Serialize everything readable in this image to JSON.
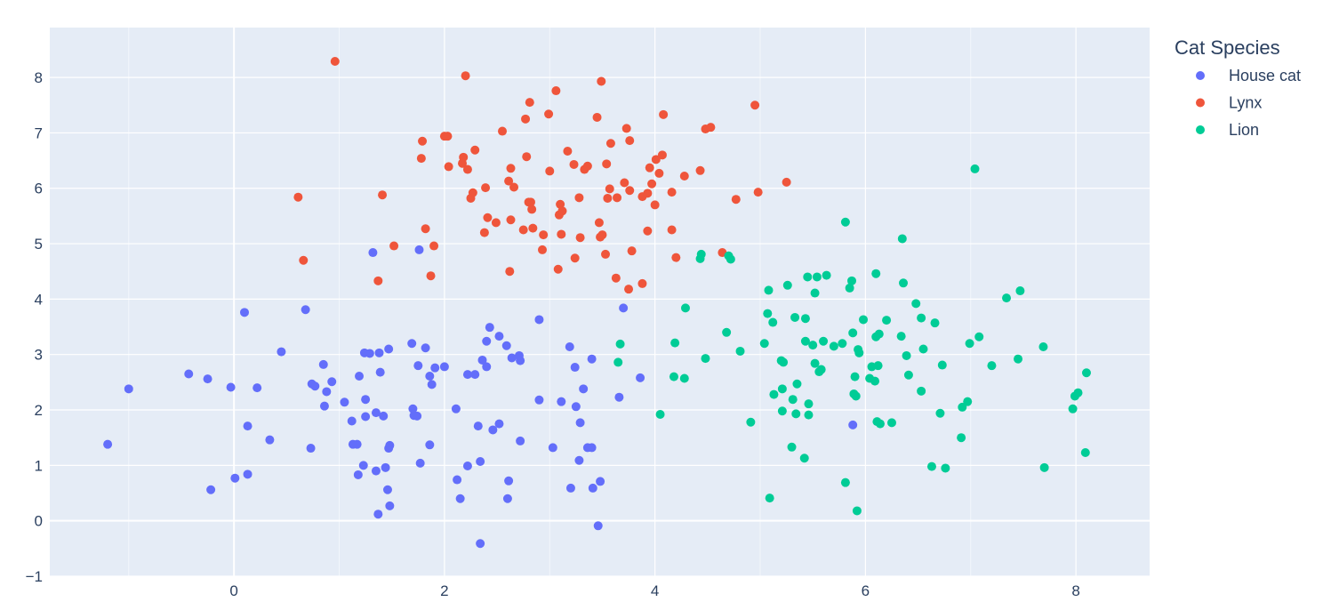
{
  "chart_data": {
    "type": "scatter",
    "title": "",
    "xlabel": "",
    "ylabel": "",
    "xlim": [
      -1.75,
      8.7
    ],
    "ylim": [
      -1,
      8.9
    ],
    "x_ticks": [
      0,
      2,
      4,
      6,
      8
    ],
    "y_ticks": [
      -1,
      0,
      1,
      2,
      3,
      4,
      5,
      6,
      7,
      8
    ],
    "x_tick_labels": [
      "0",
      "2",
      "4",
      "6",
      "8"
    ],
    "y_tick_labels": [
      "−1",
      "0",
      "1",
      "2",
      "3",
      "4",
      "5",
      "6",
      "7",
      "8"
    ],
    "grid": true,
    "plot_background": "#e5ecf6",
    "grid_color": "#ffffff",
    "legend": {
      "title": "Cat Species",
      "placement": "top-right-outside"
    },
    "series": [
      {
        "name": "House cat",
        "color": "#636efa",
        "points": [
          [
            -1.2,
            1.38
          ],
          [
            -1.0,
            2.38
          ],
          [
            -0.43,
            2.65
          ],
          [
            -0.25,
            2.56
          ],
          [
            -0.22,
            0.56
          ],
          [
            -0.03,
            2.41
          ],
          [
            0.01,
            0.77
          ],
          [
            0.1,
            3.76
          ],
          [
            0.13,
            1.71
          ],
          [
            0.13,
            0.84
          ],
          [
            0.22,
            2.4
          ],
          [
            0.34,
            1.46
          ],
          [
            0.45,
            3.05
          ],
          [
            0.68,
            3.81
          ],
          [
            0.73,
            1.31
          ],
          [
            0.74,
            2.47
          ],
          [
            0.77,
            2.43
          ],
          [
            0.85,
            2.82
          ],
          [
            0.86,
            2.07
          ],
          [
            0.88,
            2.33
          ],
          [
            0.93,
            2.51
          ],
          [
            1.05,
            2.14
          ],
          [
            1.12,
            1.8
          ],
          [
            1.13,
            1.38
          ],
          [
            1.17,
            1.38
          ],
          [
            1.18,
            0.83
          ],
          [
            1.19,
            2.61
          ],
          [
            1.23,
            1.0
          ],
          [
            1.24,
            3.03
          ],
          [
            1.25,
            2.19
          ],
          [
            1.25,
            1.88
          ],
          [
            1.29,
            3.02
          ],
          [
            1.32,
            4.84
          ],
          [
            1.35,
            1.95
          ],
          [
            1.35,
            0.9
          ],
          [
            1.37,
            0.12
          ],
          [
            1.38,
            3.03
          ],
          [
            1.39,
            2.68
          ],
          [
            1.42,
            1.89
          ],
          [
            1.44,
            0.96
          ],
          [
            1.46,
            0.56
          ],
          [
            1.47,
            1.31
          ],
          [
            1.48,
            1.36
          ],
          [
            1.48,
            0.27
          ],
          [
            1.47,
            3.1
          ],
          [
            1.69,
            3.2
          ],
          [
            1.7,
            2.02
          ],
          [
            1.71,
            1.9
          ],
          [
            1.74,
            1.89
          ],
          [
            1.75,
            2.8
          ],
          [
            1.76,
            4.89
          ],
          [
            1.77,
            1.04
          ],
          [
            1.82,
            3.12
          ],
          [
            1.86,
            1.37
          ],
          [
            1.86,
            2.61
          ],
          [
            1.88,
            2.46
          ],
          [
            1.91,
            2.76
          ],
          [
            2.0,
            2.78
          ],
          [
            2.11,
            2.02
          ],
          [
            2.12,
            0.74
          ],
          [
            2.15,
            0.4
          ],
          [
            2.22,
            0.99
          ],
          [
            2.22,
            2.64
          ],
          [
            2.29,
            2.64
          ],
          [
            2.32,
            1.71
          ],
          [
            2.34,
            1.07
          ],
          [
            2.34,
            -0.41
          ],
          [
            2.36,
            2.9
          ],
          [
            2.4,
            3.24
          ],
          [
            2.4,
            2.78
          ],
          [
            2.43,
            3.49
          ],
          [
            2.46,
            1.64
          ],
          [
            2.52,
            3.33
          ],
          [
            2.52,
            1.75
          ],
          [
            2.59,
            3.16
          ],
          [
            2.6,
            0.4
          ],
          [
            2.61,
            0.72
          ],
          [
            2.64,
            2.94
          ],
          [
            2.71,
            2.98
          ],
          [
            2.72,
            2.89
          ],
          [
            2.72,
            1.44
          ],
          [
            2.9,
            2.18
          ],
          [
            2.9,
            3.63
          ],
          [
            3.03,
            1.32
          ],
          [
            3.11,
            2.15
          ],
          [
            3.19,
            3.14
          ],
          [
            3.2,
            0.59
          ],
          [
            3.24,
            2.77
          ],
          [
            3.25,
            2.06
          ],
          [
            3.28,
            1.09
          ],
          [
            3.29,
            1.77
          ],
          [
            3.32,
            2.38
          ],
          [
            3.36,
            1.32
          ],
          [
            3.4,
            1.32
          ],
          [
            3.4,
            2.92
          ],
          [
            3.41,
            0.59
          ],
          [
            3.46,
            -0.09
          ],
          [
            3.48,
            0.71
          ],
          [
            3.66,
            2.23
          ],
          [
            3.7,
            3.84
          ],
          [
            3.86,
            2.58
          ],
          [
            5.88,
            1.73
          ]
        ]
      },
      {
        "name": "Lynx",
        "color": "#ef553b",
        "points": [
          [
            0.61,
            5.84
          ],
          [
            0.66,
            4.7
          ],
          [
            0.96,
            8.29
          ],
          [
            1.37,
            4.33
          ],
          [
            1.41,
            5.88
          ],
          [
            1.52,
            4.96
          ],
          [
            1.78,
            6.54
          ],
          [
            1.79,
            6.85
          ],
          [
            1.82,
            5.27
          ],
          [
            1.87,
            4.42
          ],
          [
            1.9,
            4.96
          ],
          [
            2.0,
            6.94
          ],
          [
            2.03,
            6.94
          ],
          [
            2.04,
            6.39
          ],
          [
            2.17,
            6.45
          ],
          [
            2.18,
            6.56
          ],
          [
            2.2,
            8.03
          ],
          [
            2.22,
            6.34
          ],
          [
            2.25,
            5.82
          ],
          [
            2.27,
            5.92
          ],
          [
            2.29,
            6.69
          ],
          [
            2.38,
            5.2
          ],
          [
            2.39,
            6.01
          ],
          [
            2.41,
            5.47
          ],
          [
            2.49,
            5.38
          ],
          [
            2.55,
            7.03
          ],
          [
            2.61,
            6.13
          ],
          [
            2.62,
            4.5
          ],
          [
            2.63,
            6.36
          ],
          [
            2.63,
            5.43
          ],
          [
            2.66,
            6.02
          ],
          [
            2.75,
            5.25
          ],
          [
            2.77,
            7.25
          ],
          [
            2.78,
            6.57
          ],
          [
            2.8,
            5.75
          ],
          [
            2.81,
            7.55
          ],
          [
            2.82,
            5.75
          ],
          [
            2.83,
            5.62
          ],
          [
            2.84,
            5.28
          ],
          [
            2.93,
            4.89
          ],
          [
            2.94,
            5.16
          ],
          [
            2.99,
            7.34
          ],
          [
            3.0,
            6.31
          ],
          [
            3.06,
            7.76
          ],
          [
            3.08,
            4.54
          ],
          [
            3.09,
            5.52
          ],
          [
            3.1,
            5.71
          ],
          [
            3.11,
            5.17
          ],
          [
            3.12,
            5.59
          ],
          [
            3.17,
            6.67
          ],
          [
            3.23,
            6.43
          ],
          [
            3.24,
            4.74
          ],
          [
            3.28,
            5.83
          ],
          [
            3.29,
            5.11
          ],
          [
            3.33,
            6.34
          ],
          [
            3.36,
            6.4
          ],
          [
            3.45,
            7.28
          ],
          [
            3.47,
            5.38
          ],
          [
            3.48,
            5.12
          ],
          [
            3.49,
            7.93
          ],
          [
            3.5,
            5.16
          ],
          [
            3.53,
            4.81
          ],
          [
            3.54,
            6.44
          ],
          [
            3.55,
            5.82
          ],
          [
            3.57,
            5.99
          ],
          [
            3.58,
            6.81
          ],
          [
            3.63,
            4.38
          ],
          [
            3.64,
            5.83
          ],
          [
            3.71,
            6.1
          ],
          [
            3.73,
            7.08
          ],
          [
            3.75,
            4.18
          ],
          [
            3.76,
            5.96
          ],
          [
            3.76,
            6.86
          ],
          [
            3.78,
            4.87
          ],
          [
            3.88,
            4.28
          ],
          [
            3.88,
            5.85
          ],
          [
            3.93,
            5.23
          ],
          [
            3.93,
            5.91
          ],
          [
            3.95,
            6.37
          ],
          [
            3.97,
            6.08
          ],
          [
            4.0,
            5.7
          ],
          [
            4.01,
            6.52
          ],
          [
            4.04,
            6.27
          ],
          [
            4.07,
            6.6
          ],
          [
            4.08,
            7.33
          ],
          [
            4.16,
            5.25
          ],
          [
            4.16,
            5.93
          ],
          [
            4.2,
            4.75
          ],
          [
            4.28,
            6.22
          ],
          [
            4.43,
            6.32
          ],
          [
            4.48,
            7.07
          ],
          [
            4.53,
            7.1
          ],
          [
            4.64,
            4.84
          ],
          [
            4.77,
            5.8
          ],
          [
            4.95,
            7.5
          ],
          [
            4.98,
            5.93
          ],
          [
            5.25,
            6.11
          ]
        ]
      },
      {
        "name": "Lion",
        "color": "#00cc96",
        "points": [
          [
            3.65,
            2.86
          ],
          [
            3.67,
            3.19
          ],
          [
            4.05,
            1.92
          ],
          [
            4.18,
            2.6
          ],
          [
            4.19,
            3.21
          ],
          [
            4.28,
            2.57
          ],
          [
            4.29,
            3.84
          ],
          [
            4.43,
            4.73
          ],
          [
            4.44,
            4.81
          ],
          [
            4.48,
            2.93
          ],
          [
            4.68,
            3.4
          ],
          [
            4.7,
            4.78
          ],
          [
            4.72,
            4.72
          ],
          [
            4.81,
            3.06
          ],
          [
            4.91,
            1.78
          ],
          [
            5.04,
            3.2
          ],
          [
            5.07,
            3.74
          ],
          [
            5.08,
            4.16
          ],
          [
            5.09,
            0.41
          ],
          [
            5.12,
            3.58
          ],
          [
            5.13,
            2.28
          ],
          [
            5.2,
            2.89
          ],
          [
            5.21,
            1.98
          ],
          [
            5.21,
            2.38
          ],
          [
            5.22,
            2.86
          ],
          [
            5.26,
            4.25
          ],
          [
            5.3,
            1.33
          ],
          [
            5.31,
            2.19
          ],
          [
            5.33,
            3.67
          ],
          [
            5.34,
            1.93
          ],
          [
            5.35,
            2.47
          ],
          [
            5.42,
            1.13
          ],
          [
            5.43,
            3.65
          ],
          [
            5.43,
            3.24
          ],
          [
            5.45,
            4.4
          ],
          [
            5.46,
            1.91
          ],
          [
            5.46,
            2.11
          ],
          [
            5.5,
            3.17
          ],
          [
            5.52,
            2.84
          ],
          [
            5.52,
            4.11
          ],
          [
            5.54,
            4.4
          ],
          [
            5.56,
            2.69
          ],
          [
            5.58,
            2.73
          ],
          [
            5.6,
            3.24
          ],
          [
            5.63,
            4.43
          ],
          [
            5.7,
            3.15
          ],
          [
            5.78,
            3.2
          ],
          [
            5.81,
            0.69
          ],
          [
            5.81,
            5.39
          ],
          [
            5.85,
            4.2
          ],
          [
            5.87,
            4.33
          ],
          [
            5.88,
            3.39
          ],
          [
            5.89,
            2.29
          ],
          [
            5.9,
            2.6
          ],
          [
            5.91,
            2.25
          ],
          [
            5.92,
            0.18
          ],
          [
            5.93,
            3.09
          ],
          [
            5.94,
            3.03
          ],
          [
            5.98,
            3.63
          ],
          [
            6.04,
            2.57
          ],
          [
            6.06,
            2.78
          ],
          [
            6.09,
            2.52
          ],
          [
            6.1,
            4.46
          ],
          [
            6.1,
            3.32
          ],
          [
            6.11,
            1.79
          ],
          [
            6.12,
            2.8
          ],
          [
            6.13,
            3.37
          ],
          [
            6.14,
            1.75
          ],
          [
            6.2,
            3.62
          ],
          [
            6.25,
            1.77
          ],
          [
            6.34,
            3.33
          ],
          [
            6.35,
            5.09
          ],
          [
            6.36,
            4.29
          ],
          [
            6.39,
            2.98
          ],
          [
            6.41,
            2.63
          ],
          [
            6.48,
            3.92
          ],
          [
            6.53,
            2.34
          ],
          [
            6.53,
            3.66
          ],
          [
            6.55,
            3.1
          ],
          [
            6.63,
            0.98
          ],
          [
            6.66,
            3.57
          ],
          [
            6.71,
            1.94
          ],
          [
            6.73,
            2.81
          ],
          [
            6.76,
            0.95
          ],
          [
            6.91,
            1.5
          ],
          [
            6.92,
            2.05
          ],
          [
            6.97,
            2.15
          ],
          [
            6.99,
            3.2
          ],
          [
            7.04,
            6.35
          ],
          [
            7.08,
            3.32
          ],
          [
            7.2,
            2.8
          ],
          [
            7.34,
            4.02
          ],
          [
            7.45,
            2.92
          ],
          [
            7.47,
            4.15
          ],
          [
            7.69,
            3.14
          ],
          [
            7.7,
            0.96
          ],
          [
            7.97,
            2.02
          ],
          [
            7.99,
            2.25
          ],
          [
            8.02,
            2.31
          ],
          [
            8.09,
            1.23
          ],
          [
            8.1,
            2.67
          ]
        ]
      }
    ]
  }
}
